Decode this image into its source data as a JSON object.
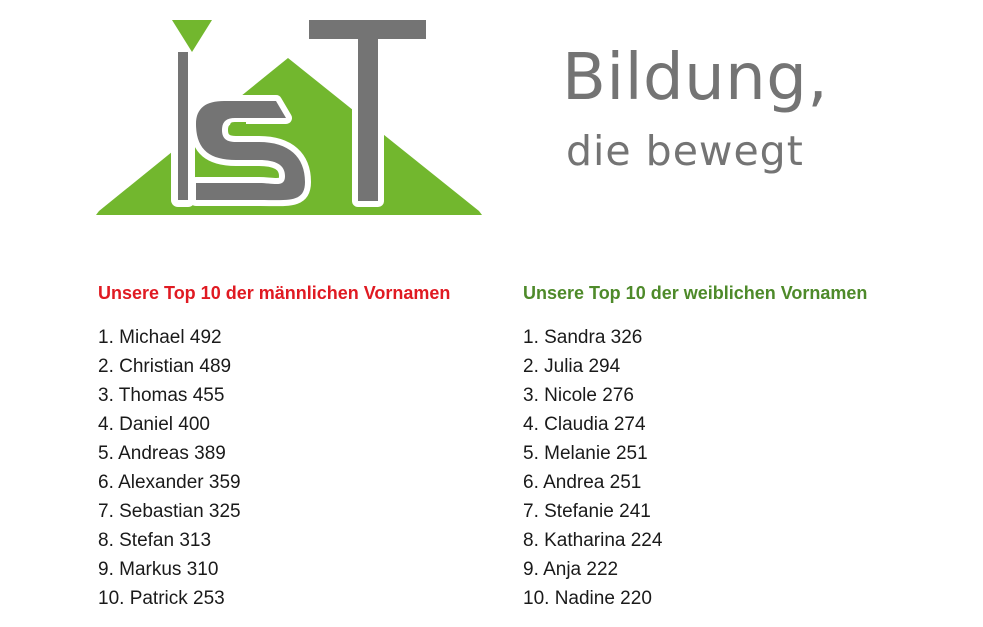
{
  "logo": {
    "icon": "ist-logo",
    "text": "iST",
    "colors": {
      "green": "#72b72e",
      "gray": "#747474"
    }
  },
  "slogan": {
    "line1": "Bildung,",
    "line2": "die bewegt"
  },
  "male": {
    "heading": "Unsere Top 10 der männlichen Vornamen",
    "color": "#e01a22",
    "items": [
      "1. Michael 492",
      "2. Christian 489",
      "3. Thomas 455",
      "4. Daniel 400",
      "5. Andreas 389",
      "6. Alexander 359",
      "7. Sebastian 325",
      "8. Stefan 313",
      "9. Markus 310",
      "10. Patrick 253"
    ]
  },
  "female": {
    "heading": "Unsere Top 10 der weiblichen Vornamen",
    "color": "#4e8a2a",
    "items": [
      "1. Sandra 326",
      "2. Julia 294",
      "3. Nicole 276",
      "4. Claudia 274",
      "5. Melanie 251",
      "6. Andrea 251",
      "7. Stefanie 241",
      "8. Katharina 224",
      "9. Anja 222",
      "10. Nadine 220"
    ]
  }
}
